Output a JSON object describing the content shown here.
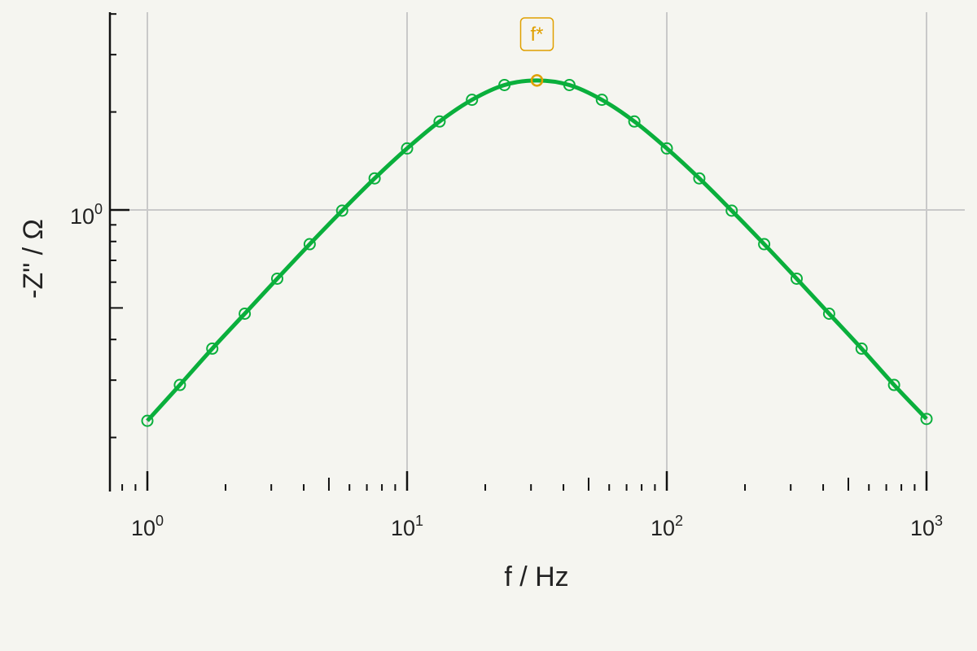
{
  "colors": {
    "background": "#f5f5f0",
    "series": "#0aaf3c",
    "annotation": "#e0a000",
    "grid": "#c9c9c9",
    "axis": "#111111"
  },
  "chart_data": {
    "type": "line",
    "title": "",
    "xlabel": "f / Hz",
    "ylabel": "-Z\" / Ω",
    "xscale": "log",
    "yscale": "log",
    "xlim": [
      0.72,
      1600
    ],
    "ylim": [
      0.2,
      4.24
    ],
    "grid": true,
    "legend": "none",
    "x_ticks": [
      {
        "base": "10",
        "exp": "0",
        "value": 1
      },
      {
        "base": "10",
        "exp": "1",
        "value": 10
      },
      {
        "base": "10",
        "exp": "2",
        "value": 100
      },
      {
        "base": "10",
        "exp": "3",
        "value": 1000
      }
    ],
    "y_ticks": [
      {
        "base": "10",
        "exp": "0",
        "value": 1
      }
    ],
    "series": [
      {
        "marker": "open-circle",
        "x": [
          1,
          1.334,
          1.778,
          2.371,
          3.162,
          4.217,
          5.623,
          7.499,
          10,
          13.34,
          17.78,
          23.71,
          31.62,
          42.17,
          56.23,
          74.99,
          100,
          133.4,
          177.8,
          237.1,
          316.2,
          421.7,
          562.3,
          749.9,
          1000
        ],
        "y": [
          0.225,
          0.29,
          0.375,
          0.48,
          0.615,
          0.785,
          0.995,
          1.25,
          1.545,
          1.87,
          2.18,
          2.42,
          2.5,
          2.42,
          2.18,
          1.87,
          1.545,
          1.25,
          0.995,
          0.785,
          0.615,
          0.48,
          0.375,
          0.29,
          0.228
        ]
      }
    ],
    "annotations": [
      {
        "label": "f*",
        "x": 31.62,
        "y": 2.5
      }
    ]
  }
}
